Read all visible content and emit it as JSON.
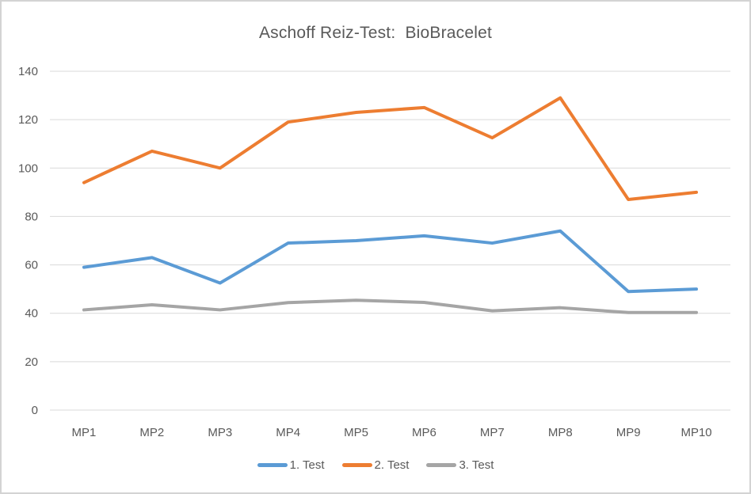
{
  "chart_data": {
    "type": "line",
    "title": "Aschoff Reiz-Test:  BioBracelet",
    "categories": [
      "MP1",
      "MP2",
      "MP3",
      "MP4",
      "MP5",
      "MP6",
      "MP7",
      "MP8",
      "MP9",
      "MP10"
    ],
    "series": [
      {
        "name": "1. Test",
        "color": "#5B9BD5",
        "values": [
          59,
          63,
          52.5,
          69,
          70,
          72,
          69,
          74,
          49,
          50
        ]
      },
      {
        "name": "2. Test",
        "color": "#ED7D31",
        "values": [
          94,
          107,
          100,
          119,
          123,
          125,
          112.5,
          129,
          87,
          90
        ]
      },
      {
        "name": "3. Test",
        "color": "#A5A5A5",
        "values": [
          41.4,
          43.5,
          41.4,
          44.4,
          45.4,
          44.5,
          41,
          42.3,
          40.3,
          40.3
        ]
      }
    ],
    "y_ticks": [
      "140",
      "120",
      "100",
      "80",
      "60",
      "40",
      "20",
      "0"
    ],
    "ylim": [
      0,
      140
    ],
    "y_tick_step": 20,
    "xlabel": "",
    "ylabel": "",
    "grid": true,
    "legend_position": "bottom",
    "gridline_color": "#D9D9D9",
    "tick_label_color": "#595959",
    "title_color": "#595959"
  }
}
